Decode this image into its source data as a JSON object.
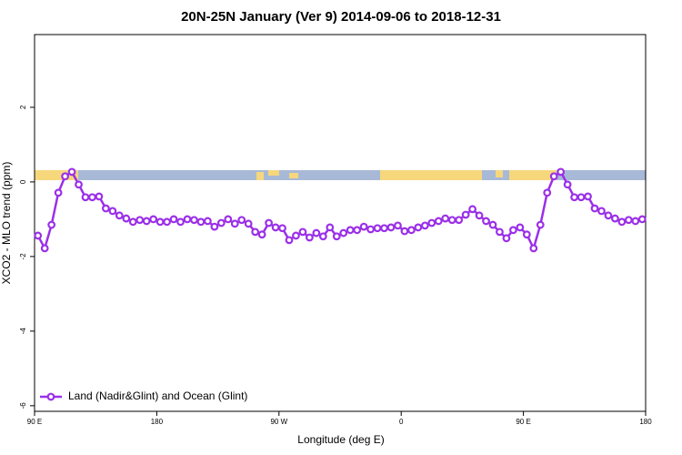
{
  "chart_data": {
    "type": "line",
    "title": "20N-25N January (Ver 9)   2014-09-06 to 2018-12-31",
    "x_label": "Longitude (deg E)",
    "y_label": "XCO2 - MLO trend (ppm)",
    "xlim": [
      90,
      540
    ],
    "ylim": [
      -6.15,
      3.95
    ],
    "xticks": [
      {
        "value": 90,
        "label": "90 E"
      },
      {
        "value": 180,
        "label": "180"
      },
      {
        "value": 270,
        "label": "90 W"
      },
      {
        "value": 360,
        "label": "0"
      },
      {
        "value": 450,
        "label": "90 E"
      },
      {
        "value": 540,
        "label": "180"
      }
    ],
    "yticks": [
      -6,
      -4,
      -2,
      0,
      2
    ],
    "legend": "lower left",
    "grid": false,
    "x": [
      92.5,
      97.5,
      102.5,
      107.5,
      112.5,
      117.5,
      122.5,
      127.5,
      132.5,
      137.5,
      142.5,
      147.5,
      152.5,
      157.5,
      162.5,
      167.5,
      172.5,
      177.5,
      182.5,
      187.5,
      192.5,
      197.5,
      202.5,
      207.5,
      212.5,
      217.5,
      222.5,
      227.5,
      232.5,
      237.5,
      242.5,
      247.5,
      252.5,
      257.5,
      262.5,
      267.5,
      272.5,
      277.5,
      282.5,
      287.5,
      292.5,
      297.5,
      302.5,
      307.5,
      312.5,
      317.5,
      322.5,
      327.5,
      332.5,
      337.5,
      342.5,
      347.5,
      352.5,
      357.5,
      362.5,
      367.5,
      372.5,
      377.5,
      382.5,
      387.5,
      392.5,
      397.5,
      402.5,
      407.5,
      412.5,
      417.5,
      422.5,
      427.5,
      432.5,
      437.5,
      442.5,
      447.5,
      452.5,
      457.5,
      462.5,
      467.5,
      472.5,
      477.5,
      482.5,
      487.5,
      492.5,
      497.5,
      502.5,
      507.5,
      512.5,
      517.5,
      522.5,
      527.5,
      532.5,
      537.5
    ],
    "series": [
      {
        "name": "Land (Nadir&Glint) and Ocean (Glint)",
        "color": "#9b30e8",
        "values": [
          -1.44,
          -1.78,
          -1.15,
          -0.29,
          0.15,
          0.27,
          -0.07,
          -0.41,
          -0.41,
          -0.39,
          -0.71,
          -0.78,
          -0.9,
          -0.98,
          -1.07,
          -1.02,
          -1.05,
          -1.0,
          -1.07,
          -1.07,
          -1.0,
          -1.07,
          -1.0,
          -1.02,
          -1.07,
          -1.05,
          -1.2,
          -1.1,
          -1.0,
          -1.12,
          -1.02,
          -1.12,
          -1.34,
          -1.41,
          -1.1,
          -1.22,
          -1.24,
          -1.56,
          -1.44,
          -1.34,
          -1.49,
          -1.37,
          -1.46,
          -1.22,
          -1.46,
          -1.37,
          -1.29,
          -1.29,
          -1.2,
          -1.27,
          -1.24,
          -1.24,
          -1.22,
          -1.17,
          -1.32,
          -1.29,
          -1.22,
          -1.17,
          -1.1,
          -1.05,
          -0.98,
          -1.02,
          -1.02,
          -0.88,
          -0.73,
          -0.9,
          -1.05,
          -1.15,
          -1.34,
          -1.51,
          -1.29,
          -1.22,
          -1.41,
          -1.78,
          -1.15,
          -0.29,
          0.15,
          0.27,
          -0.07,
          -0.41,
          -0.41,
          -0.39,
          -0.71,
          -0.78,
          -0.9,
          -0.98,
          -1.07,
          -1.02,
          -1.05,
          -1.0
        ]
      }
    ]
  }
}
